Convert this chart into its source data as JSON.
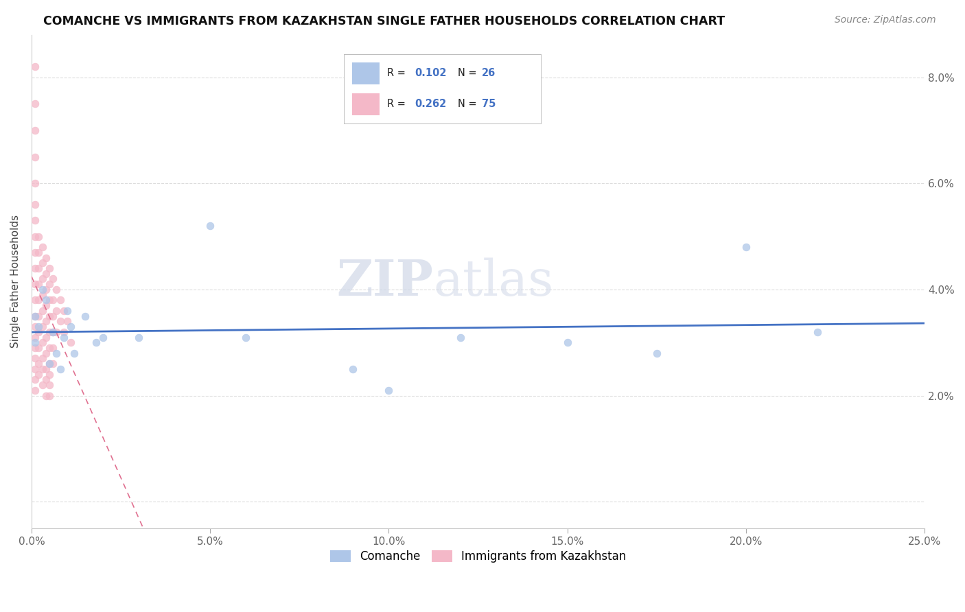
{
  "title": "COMANCHE VS IMMIGRANTS FROM KAZAKHSTAN SINGLE FATHER HOUSEHOLDS CORRELATION CHART",
  "source": "Source: ZipAtlas.com",
  "ylabel": "Single Father Households",
  "y_ticks": [
    0.0,
    0.02,
    0.04,
    0.06,
    0.08
  ],
  "y_tick_labels": [
    "",
    "2.0%",
    "4.0%",
    "6.0%",
    "8.0%"
  ],
  "x_min": 0.0,
  "x_max": 0.25,
  "y_min": -0.005,
  "y_max": 0.088,
  "comanche_x": [
    0.001,
    0.001,
    0.002,
    0.003,
    0.004,
    0.005,
    0.006,
    0.007,
    0.008,
    0.009,
    0.01,
    0.011,
    0.012,
    0.015,
    0.018,
    0.02,
    0.03,
    0.05,
    0.06,
    0.09,
    0.1,
    0.12,
    0.15,
    0.175,
    0.2,
    0.22
  ],
  "comanche_y": [
    0.03,
    0.035,
    0.033,
    0.04,
    0.038,
    0.026,
    0.032,
    0.028,
    0.025,
    0.031,
    0.036,
    0.033,
    0.028,
    0.035,
    0.03,
    0.031,
    0.031,
    0.052,
    0.031,
    0.025,
    0.021,
    0.031,
    0.03,
    0.028,
    0.048,
    0.032
  ],
  "kazakhstan_x": [
    0.001,
    0.001,
    0.001,
    0.001,
    0.001,
    0.001,
    0.001,
    0.001,
    0.001,
    0.001,
    0.001,
    0.001,
    0.001,
    0.001,
    0.001,
    0.001,
    0.001,
    0.001,
    0.001,
    0.001,
    0.002,
    0.002,
    0.002,
    0.002,
    0.002,
    0.002,
    0.002,
    0.002,
    0.002,
    0.002,
    0.003,
    0.003,
    0.003,
    0.003,
    0.003,
    0.003,
    0.003,
    0.003,
    0.003,
    0.003,
    0.004,
    0.004,
    0.004,
    0.004,
    0.004,
    0.004,
    0.004,
    0.004,
    0.004,
    0.004,
    0.005,
    0.005,
    0.005,
    0.005,
    0.005,
    0.005,
    0.005,
    0.005,
    0.005,
    0.005,
    0.006,
    0.006,
    0.006,
    0.006,
    0.006,
    0.006,
    0.007,
    0.007,
    0.007,
    0.008,
    0.008,
    0.009,
    0.009,
    0.01,
    0.011
  ],
  "kazakhstan_y": [
    0.082,
    0.075,
    0.07,
    0.065,
    0.06,
    0.056,
    0.053,
    0.05,
    0.047,
    0.044,
    0.041,
    0.038,
    0.035,
    0.033,
    0.031,
    0.029,
    0.027,
    0.025,
    0.023,
    0.021,
    0.05,
    0.047,
    0.044,
    0.041,
    0.038,
    0.035,
    0.032,
    0.029,
    0.026,
    0.024,
    0.048,
    0.045,
    0.042,
    0.039,
    0.036,
    0.033,
    0.03,
    0.027,
    0.025,
    0.022,
    0.046,
    0.043,
    0.04,
    0.037,
    0.034,
    0.031,
    0.028,
    0.025,
    0.023,
    0.02,
    0.044,
    0.041,
    0.038,
    0.035,
    0.032,
    0.029,
    0.026,
    0.024,
    0.022,
    0.02,
    0.042,
    0.038,
    0.035,
    0.032,
    0.029,
    0.026,
    0.04,
    0.036,
    0.032,
    0.038,
    0.034,
    0.036,
    0.032,
    0.034,
    0.03
  ],
  "comanche_color": "#aec6e8",
  "kazakhstan_color": "#f4b8c8",
  "comanche_line_color": "#4472c4",
  "kazakhstan_line_color": "#e07090",
  "watermark_zip": "ZIP",
  "watermark_atlas": "atlas",
  "grid_color": "#dddddd",
  "dot_size": 60,
  "dot_alpha": 0.75
}
